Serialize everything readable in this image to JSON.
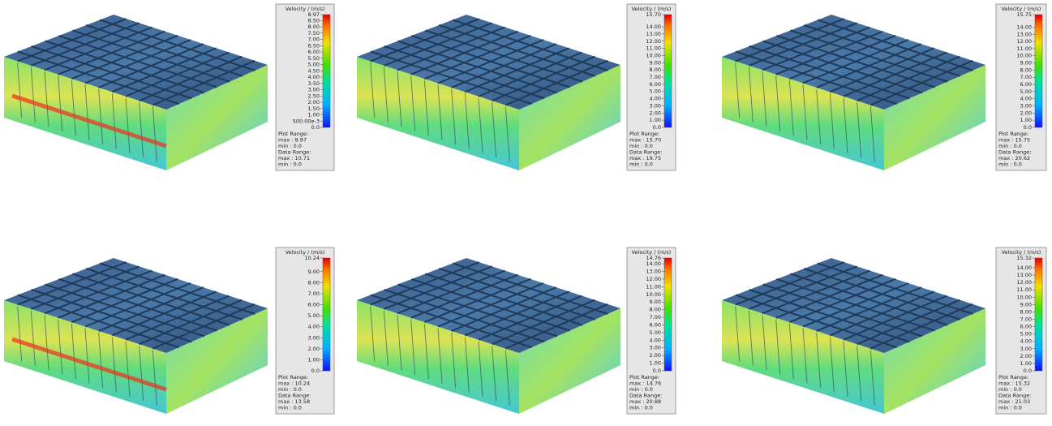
{
  "panels": [
    {
      "legend": {
        "title": "Velocity / (m/s)",
        "ticks": [
          "8.97",
          "8.50",
          "8.00",
          "7.50",
          "7.00",
          "6.50",
          "6.00",
          "5.50",
          "5.00",
          "4.50",
          "4.00",
          "3.50",
          "3.00",
          "2.50",
          "2.00",
          "1.50",
          "1.00",
          "500.00e-3",
          "0.0"
        ],
        "footer": [
          "Plot Range:",
          "max : 8.97",
          "min : 0.0",
          "Data Range:",
          "max : 10.71",
          "min : 0.0"
        ]
      }
    },
    {
      "legend": {
        "title": "Velocity / (m/s)",
        "ticks": [
          "15.70",
          "14.00",
          "13.00",
          "12.00",
          "11.00",
          "10.00",
          "9.00",
          "8.00",
          "7.00",
          "6.00",
          "5.00",
          "4.00",
          "3.00",
          "2.00",
          "1.00",
          "0.0"
        ],
        "footer": [
          "Plot Range:",
          "max : 15.70",
          "min : 0.0",
          "Data Range:",
          "max : 19.75",
          "min : 0.0"
        ]
      }
    },
    {
      "legend": {
        "title": "Velocity / (m/s)",
        "ticks": [
          "15.75",
          "14.00",
          "13.00",
          "12.00",
          "11.00",
          "10.00",
          "9.00",
          "8.00",
          "7.00",
          "6.00",
          "5.00",
          "4.00",
          "3.00",
          "2.00",
          "1.00",
          "0.0"
        ],
        "footer": [
          "Plot Range:",
          "max : 15.75",
          "min : 0.0",
          "Data Range:",
          "max : 20.62",
          "min : 0.0"
        ]
      }
    },
    {
      "legend": {
        "title": "Velocity / (m/s)",
        "ticks": [
          "10.24",
          "9.00",
          "8.00",
          "7.00",
          "6.00",
          "5.00",
          "4.00",
          "3.00",
          "2.00",
          "1.00",
          "0.0"
        ],
        "footer": [
          "Plot Range:",
          "max : 10.24",
          "min : 0.0",
          "Data Range:",
          "max : 13.58",
          "min : 0.0"
        ]
      }
    },
    {
      "legend": {
        "title": "Velocity / (m/s)",
        "ticks": [
          "14.76",
          "14.00",
          "13.00",
          "12.00",
          "11.00",
          "10.00",
          "9.00",
          "8.00",
          "7.00",
          "6.00",
          "5.00",
          "4.00",
          "3.00",
          "2.00",
          "1.00",
          "0.0"
        ],
        "footer": [
          "Plot Range:",
          "max : 14.76",
          "min : 0.0",
          "Data Range:",
          "max : 20.88",
          "min : 0.0"
        ]
      }
    },
    {
      "legend": {
        "title": "Velocity / (m/s)",
        "ticks": [
          "15.32",
          "14.00",
          "13.00",
          "12.00",
          "11.00",
          "10.00",
          "9.00",
          "8.00",
          "7.00",
          "6.00",
          "5.00",
          "4.00",
          "3.00",
          "2.00",
          "1.00",
          "0.0"
        ],
        "footer": [
          "Plot Range:",
          "max : 15.32",
          "min : 0.0",
          "Data Range:",
          "max : 21.03",
          "min : 0.0"
        ]
      }
    }
  ]
}
